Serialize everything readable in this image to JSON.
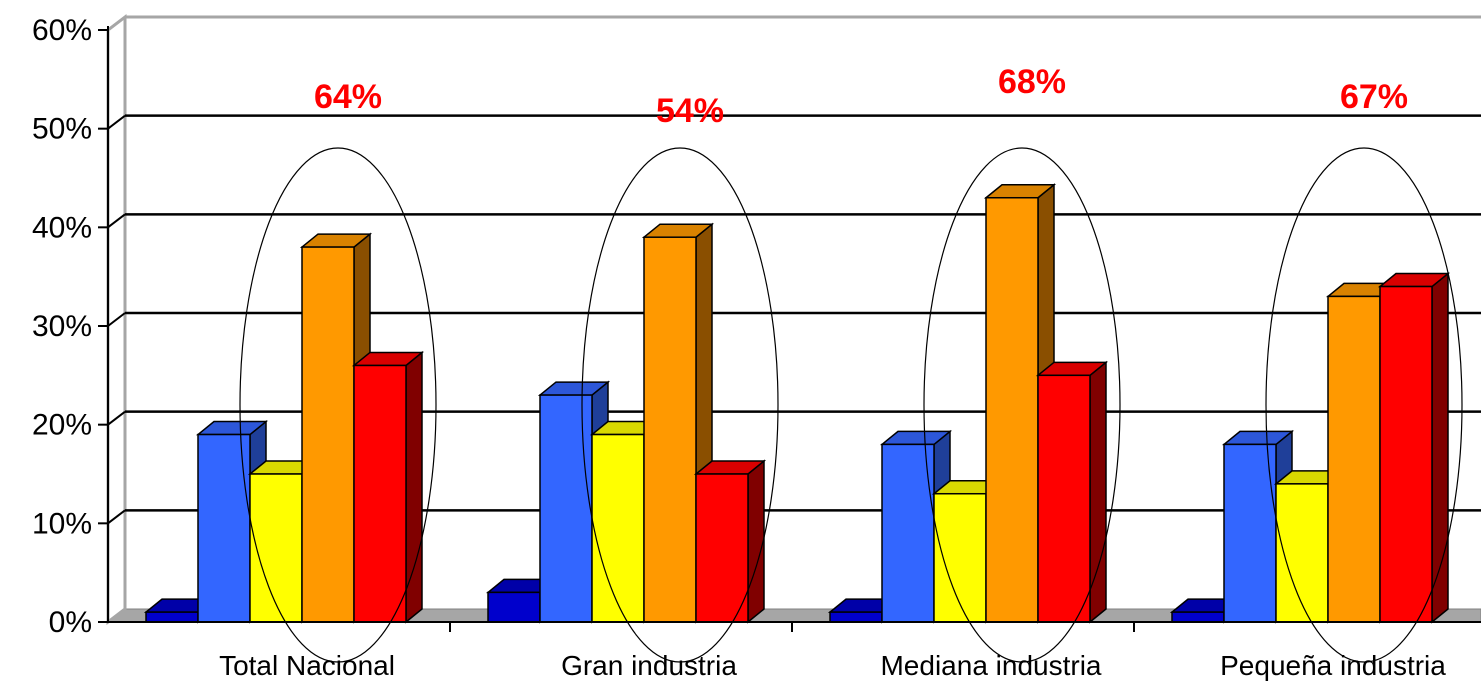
{
  "chart_data": {
    "type": "bar",
    "categories": [
      "Total Nacional",
      "Gran industria",
      "Mediana industria",
      "Pequeña industria"
    ],
    "series": [
      {
        "values": [
          1,
          3,
          1,
          1
        ]
      },
      {
        "values": [
          19,
          23,
          18,
          18
        ]
      },
      {
        "values": [
          15,
          19,
          13,
          14
        ]
      },
      {
        "values": [
          38,
          39,
          43,
          33
        ]
      },
      {
        "values": [
          26,
          15,
          25,
          34
        ]
      }
    ],
    "ylim": [
      0,
      60
    ],
    "yticks": [
      "0%",
      "10%",
      "20%",
      "30%",
      "40%",
      "50%",
      "60%"
    ],
    "grid": true,
    "legend": "none",
    "annotations": [
      "64%",
      "54%",
      "68%",
      "67%"
    ],
    "colors": {
      "series": [
        "#0000cc",
        "#3366ff",
        "#ffff00",
        "#ff9900",
        "#ff0000"
      ],
      "series_dark": [
        "#000080",
        "#1f3f99",
        "#b3b300",
        "#8a4f00",
        "#800000"
      ],
      "series_top": [
        "#0000a8",
        "#2d57d9",
        "#d9d900",
        "#d98200",
        "#d90000"
      ],
      "annotation": "#ff0000",
      "floor": "#a6a6a6"
    }
  }
}
